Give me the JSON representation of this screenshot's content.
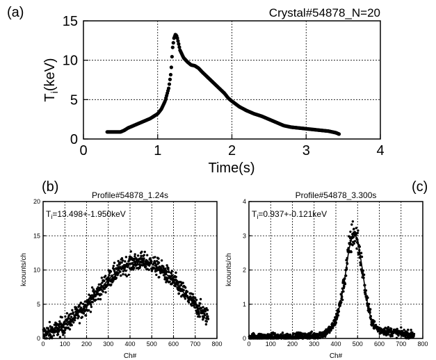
{
  "panels": [
    {
      "label": "(a)",
      "label_color": "#000000"
    },
    {
      "label": "(b)",
      "label_color": "#000000"
    },
    {
      "label": "(c)",
      "label_color": "#000000"
    }
  ],
  "chart_data": [
    {
      "type": "scatter",
      "panel": "(a)",
      "title": "Crystal#54878_N=20",
      "xlabel": "Time(s)",
      "ylabel_main": "T",
      "ylabel_sub": "i",
      "ylabel_tail": "(keV)",
      "xlim": [
        0,
        4
      ],
      "ylim": [
        0,
        15
      ],
      "xticks": [
        0,
        1,
        2,
        3,
        4
      ],
      "yticks": [
        0,
        5,
        10,
        15
      ],
      "grid": true,
      "marker_color": "#000000",
      "series": [
        {
          "x": [
            0.32,
            0.4,
            0.5,
            0.55,
            0.6,
            0.7,
            0.8,
            0.9,
            1.0,
            1.05,
            1.1,
            1.15,
            1.18,
            1.2,
            1.22,
            1.24,
            1.26,
            1.28,
            1.3,
            1.35,
            1.4,
            1.45,
            1.5,
            1.55,
            1.6,
            1.7,
            1.8,
            1.9,
            1.95,
            2.0,
            2.1,
            2.2,
            2.3,
            2.4,
            2.5,
            2.6,
            2.7,
            2.8,
            2.9,
            3.0,
            3.1,
            3.2,
            3.3,
            3.4,
            3.45
          ],
          "y": [
            0.9,
            0.9,
            0.9,
            1.1,
            1.4,
            1.8,
            2.2,
            2.6,
            3.2,
            3.8,
            4.8,
            6.5,
            8.5,
            11.5,
            12.8,
            13.3,
            13.0,
            12.2,
            11.3,
            10.3,
            9.8,
            9.4,
            9.3,
            9.0,
            8.5,
            7.6,
            6.7,
            5.8,
            5.2,
            4.8,
            4.1,
            3.6,
            3.2,
            2.9,
            2.5,
            2.1,
            1.7,
            1.5,
            1.4,
            1.3,
            1.2,
            1.1,
            1.0,
            0.8,
            0.6
          ]
        }
      ]
    },
    {
      "type": "scatter",
      "panel": "(b)",
      "title": "Profile#54878_1.24s",
      "annotation_main": "T",
      "annotation_sub": "i",
      "annotation_tail": "=13.498+-1.950keV",
      "xlabel": "Ch#",
      "ylabel": "kcounts/ch",
      "xlim": [
        0,
        800
      ],
      "ylim": [
        0,
        20
      ],
      "xticks": [
        0,
        100,
        200,
        300,
        400,
        500,
        600,
        700,
        800
      ],
      "yticks": [
        0,
        5,
        10,
        15,
        20
      ],
      "grid": true,
      "marker_color": "#000000",
      "fit_x": [
        0,
        50,
        100,
        150,
        200,
        250,
        300,
        350,
        400,
        450,
        500,
        550,
        600,
        650,
        700,
        750,
        760
      ],
      "fit_y": [
        0.6,
        1.1,
        2.0,
        3.3,
        4.9,
        6.7,
        8.6,
        10.1,
        11.0,
        11.3,
        10.9,
        9.9,
        8.4,
        6.6,
        4.9,
        3.3,
        3.0
      ],
      "scatter_noise": 1.3
    },
    {
      "type": "scatter",
      "panel": "(c)",
      "title": "Profile#54878_3.300s",
      "annotation_main": "T",
      "annotation_sub": "i",
      "annotation_tail": "=0.937+-0.121keV",
      "xlabel": "Ch#",
      "ylabel": "kcounts/ch",
      "xlim": [
        0,
        800
      ],
      "ylim": [
        0,
        4
      ],
      "xticks": [
        0,
        100,
        200,
        300,
        400,
        500,
        600,
        700,
        800
      ],
      "yticks": [
        0,
        1,
        2,
        3,
        4
      ],
      "grid": true,
      "marker_color": "#000000",
      "fit_x": [
        0,
        100,
        200,
        300,
        350,
        380,
        400,
        420,
        440,
        460,
        480,
        500,
        520,
        540,
        560,
        580,
        600,
        650,
        700,
        760
      ],
      "fit_y": [
        0.05,
        0.05,
        0.05,
        0.08,
        0.15,
        0.3,
        0.55,
        1.0,
        1.7,
        2.6,
        3.1,
        2.9,
        2.1,
        1.2,
        0.6,
        0.35,
        0.25,
        0.2,
        0.15,
        0.1
      ],
      "scatter_noise": 0.25
    }
  ]
}
